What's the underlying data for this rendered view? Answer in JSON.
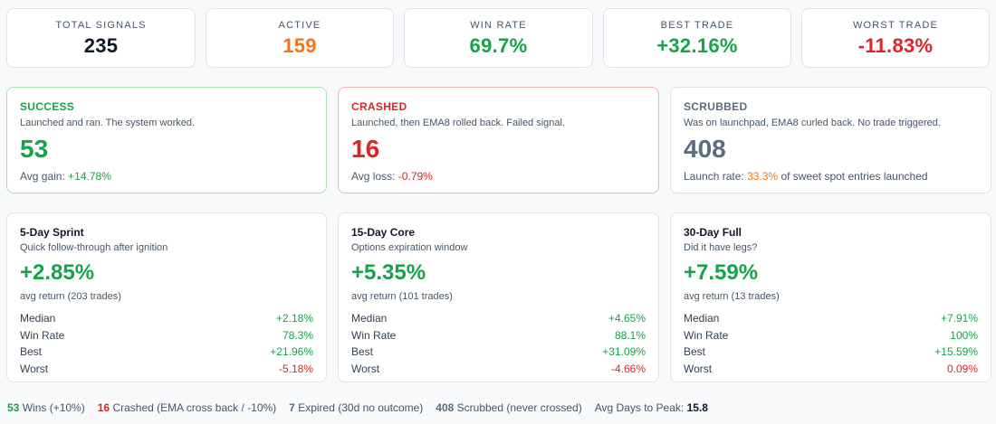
{
  "stats": [
    {
      "label": "TOTAL SIGNALS",
      "value": "235",
      "color": "#0f172a"
    },
    {
      "label": "ACTIVE",
      "value": "159",
      "color": "#f97316"
    },
    {
      "label": "WIN RATE",
      "value": "69.7%",
      "color": "#16a34a"
    },
    {
      "label": "BEST TRADE",
      "value": "+32.16%",
      "color": "#16a34a"
    },
    {
      "label": "WORST TRADE",
      "value": "-11.83%",
      "color": "#dc2626"
    }
  ],
  "outcomes": {
    "success": {
      "title": "SUCCESS",
      "desc": "Launched and ran. The system worked.",
      "count": "53",
      "foot_label": "Avg gain:",
      "foot_value": "+14.78%"
    },
    "crashed": {
      "title": "CRASHED",
      "desc": "Launched, then EMA8 rolled back. Failed signal.",
      "count": "16",
      "foot_label": "Avg loss:",
      "foot_value": "-0.79%"
    },
    "scrubbed": {
      "title": "SCRUBBED",
      "desc": "Was on launchpad, EMA8 curled back. No trade triggered.",
      "count": "408",
      "foot_label": "Launch rate:",
      "foot_value": "33.3%",
      "foot_suffix": "of sweet spot entries launched"
    }
  },
  "periods": [
    {
      "title": "5-Day Sprint",
      "subtitle": "Quick follow-through after ignition",
      "avg": "+2.85%",
      "note": "avg return (203 trades)",
      "rows": [
        {
          "label": "Median",
          "value": "+2.18%"
        },
        {
          "label": "Win Rate",
          "value": "78.3%"
        },
        {
          "label": "Best",
          "value": "+21.96%"
        },
        {
          "label": "Worst",
          "value": "-5.18%"
        }
      ]
    },
    {
      "title": "15-Day Core",
      "subtitle": "Options expiration window",
      "avg": "+5.35%",
      "note": "avg return (101 trades)",
      "rows": [
        {
          "label": "Median",
          "value": "+4.65%"
        },
        {
          "label": "Win Rate",
          "value": "88.1%"
        },
        {
          "label": "Best",
          "value": "+31.09%"
        },
        {
          "label": "Worst",
          "value": "-4.66%"
        }
      ]
    },
    {
      "title": "30-Day Full",
      "subtitle": "Did it have legs?",
      "avg": "+7.59%",
      "note": "avg return (13 trades)",
      "rows": [
        {
          "label": "Median",
          "value": "+7.91%"
        },
        {
          "label": "Win Rate",
          "value": "100%"
        },
        {
          "label": "Best",
          "value": "+15.59%"
        },
        {
          "label": "Worst",
          "value": "0.09%"
        }
      ]
    }
  ],
  "legend": {
    "wins_count": "53",
    "wins_text": "Wins (+10%)",
    "crashed_count": "16",
    "crashed_text": "Crashed (EMA cross back / -10%)",
    "expired_count": "7",
    "expired_text": "Expired (30d no outcome)",
    "scrubbed_count": "408",
    "scrubbed_text": "Scrubbed (never crossed)",
    "peak_label": "Avg Days to Peak:",
    "peak_value": "15.8"
  }
}
